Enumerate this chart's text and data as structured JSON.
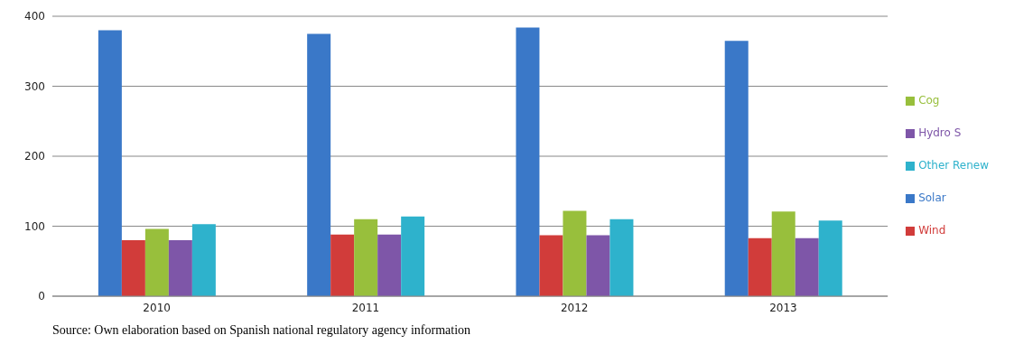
{
  "chart_data": {
    "type": "bar",
    "categories": [
      "2010",
      "2011",
      "2012",
      "2013"
    ],
    "series": [
      {
        "name": "Solar",
        "color": "#3a78c8",
        "values": [
          380,
          375,
          384,
          365
        ]
      },
      {
        "name": "Wind",
        "color": "#d13c3a",
        "values": [
          80,
          88,
          87,
          83
        ]
      },
      {
        "name": "Cog",
        "color": "#98bf3c",
        "values": [
          96,
          110,
          122,
          121
        ]
      },
      {
        "name": "Hydro S",
        "color": "#7e56a8",
        "values": [
          80,
          88,
          87,
          83
        ]
      },
      {
        "name": "Other Renew",
        "color": "#2eb2cc",
        "values": [
          103,
          114,
          110,
          108
        ]
      }
    ],
    "ylim": [
      0,
      400
    ],
    "yticks": [
      0,
      100,
      200,
      300,
      400
    ],
    "grid": "y",
    "legend": "right",
    "annotations": [
      "Source: Own elaboration based on Spanish national regulatory agency information"
    ]
  }
}
